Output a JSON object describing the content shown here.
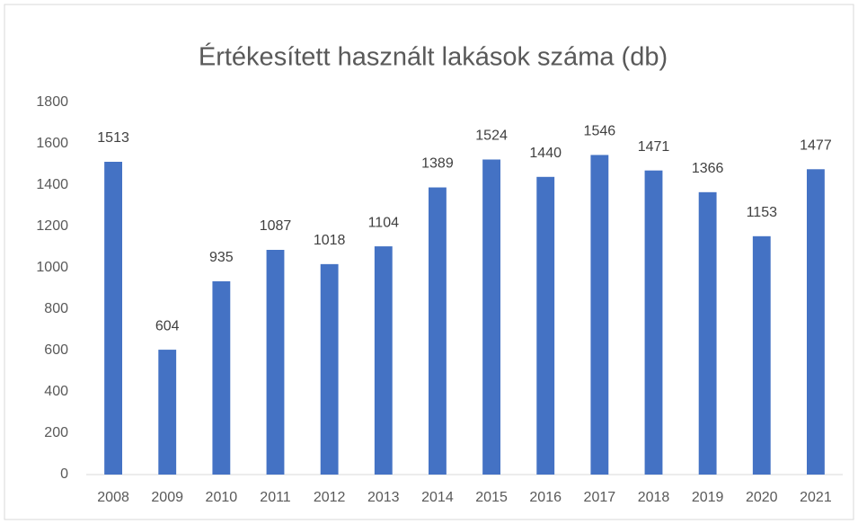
{
  "chart_data": {
    "type": "bar",
    "title": "Értékesített használt lakások száma (db)",
    "categories": [
      "2008",
      "2009",
      "2010",
      "2011",
      "2012",
      "2013",
      "2014",
      "2015",
      "2016",
      "2017",
      "2018",
      "2019",
      "2020",
      "2021"
    ],
    "values": [
      1513,
      604,
      935,
      1087,
      1018,
      1104,
      1389,
      1524,
      1440,
      1546,
      1471,
      1366,
      1153,
      1477
    ],
    "color": "#4472c4",
    "ylim": [
      0,
      1800
    ],
    "yticks": [
      0,
      200,
      400,
      600,
      800,
      1000,
      1200,
      1400,
      1600,
      1800
    ],
    "grid": false
  }
}
